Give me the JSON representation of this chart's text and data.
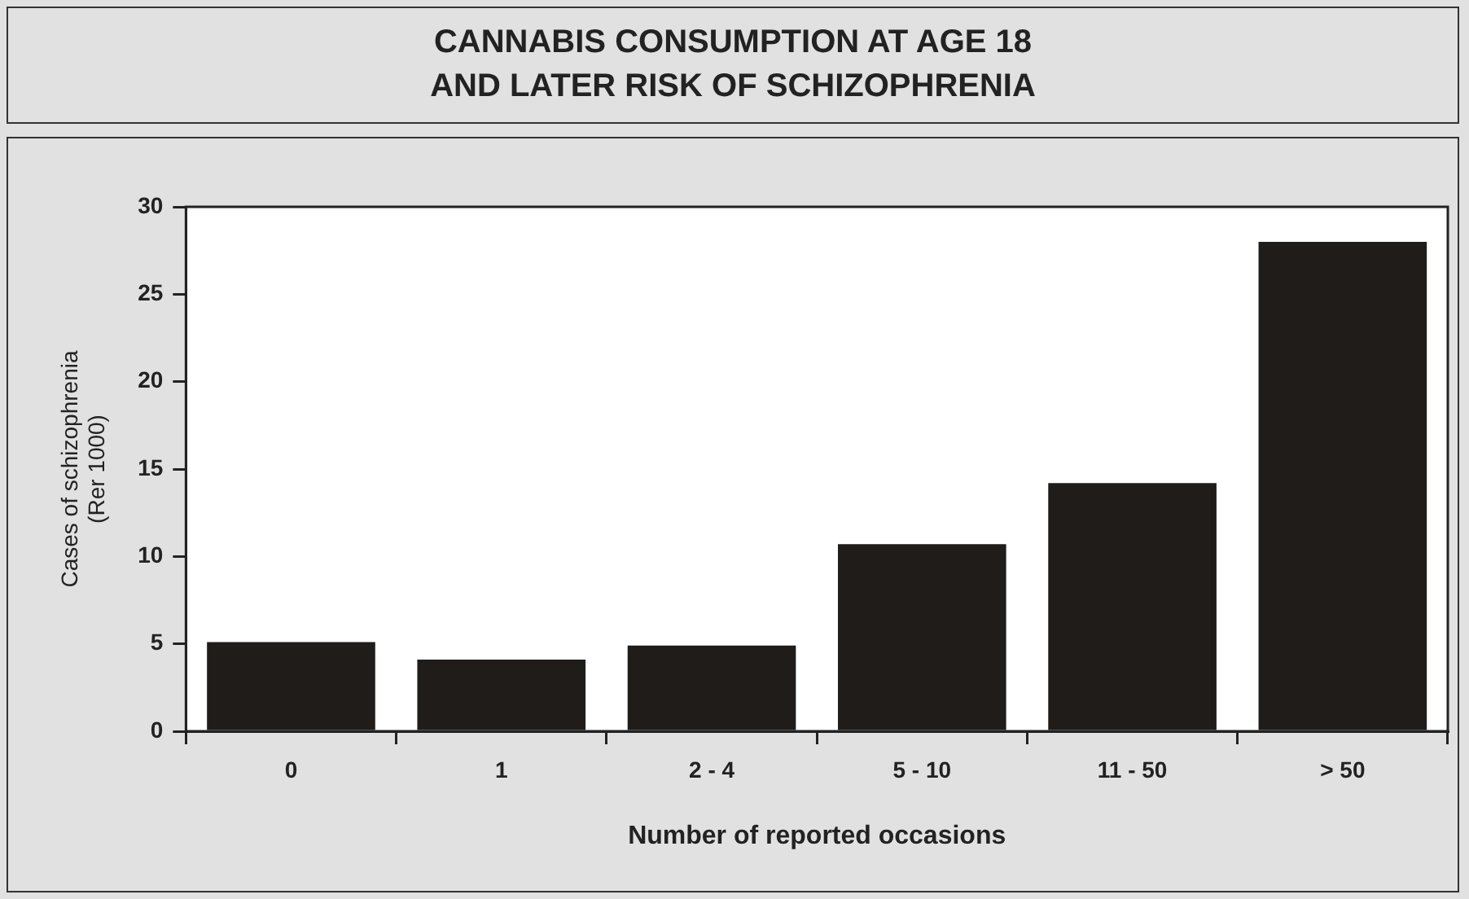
{
  "chart_data": {
    "type": "bar",
    "title": "CANNABIS CONSUMPTION AT AGE 18\nAND LATER RISK OF SCHIZOPHRENIA",
    "xlabel": "Number of reported occasions",
    "ylabel": "Cases of schizophrenia\n(Rer 1000)",
    "categories": [
      "0",
      "1",
      "2 - 4",
      "5 - 10",
      "11 - 50",
      "> 50"
    ],
    "values": [
      5.1,
      4.1,
      4.9,
      10.7,
      14.2,
      28.0
    ],
    "color": "#201c1a",
    "ylim": [
      0,
      30
    ],
    "yticks": [
      0,
      5,
      10,
      15,
      20,
      25,
      30
    ],
    "grid": false,
    "legend": false
  }
}
